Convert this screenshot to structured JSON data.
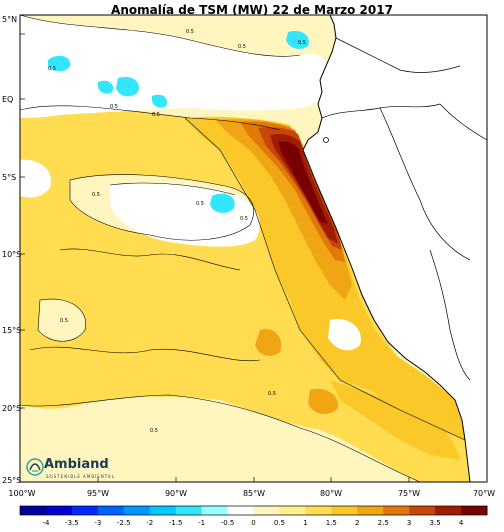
{
  "title": "Anomalía de TSM (MW) 22 de Marzo 2017",
  "lat_labels": [
    "5°N",
    "EQ",
    "5°S",
    "10°S",
    "15°S",
    "20°S",
    "25°S"
  ],
  "lon_labels": [
    "100°W",
    "95°W",
    "90°W",
    "85°W",
    "80°W",
    "75°W",
    "70°W"
  ],
  "contour_label": "0.5",
  "colorbar": {
    "labels": [
      "-4",
      "-3.5",
      "-3",
      "-2.5",
      "-2",
      "-1.5",
      "-1",
      "-0.5",
      "0",
      "0.5",
      "1",
      "1.5",
      "2",
      "2.5",
      "3",
      "3.5",
      "4"
    ],
    "colors": [
      "#00009b",
      "#0000d2",
      "#0028ff",
      "#0064ff",
      "#0096ff",
      "#00c8ff",
      "#32e6ff",
      "#96ffff",
      "#ffffff",
      "#fff5be",
      "#fff08c",
      "#ffdc50",
      "#fac828",
      "#f0a514",
      "#e1780a",
      "#c8460a",
      "#a01e00",
      "#780000"
    ]
  },
  "colors": {
    "land": "#ffffff",
    "ocean_low": "#fff5be",
    "ocean_mid": "#ffdc50",
    "ocean_warm": "#fac828",
    "hot_1": "#f0a514",
    "hot_2": "#e1780a",
    "hot_3": "#c8460a",
    "hot_4": "#a01e00",
    "cold": "#32e6ff"
  },
  "logo": {
    "name": "Ambiand",
    "subtitle": "SOSTENIBLE AMBIENTAL"
  }
}
